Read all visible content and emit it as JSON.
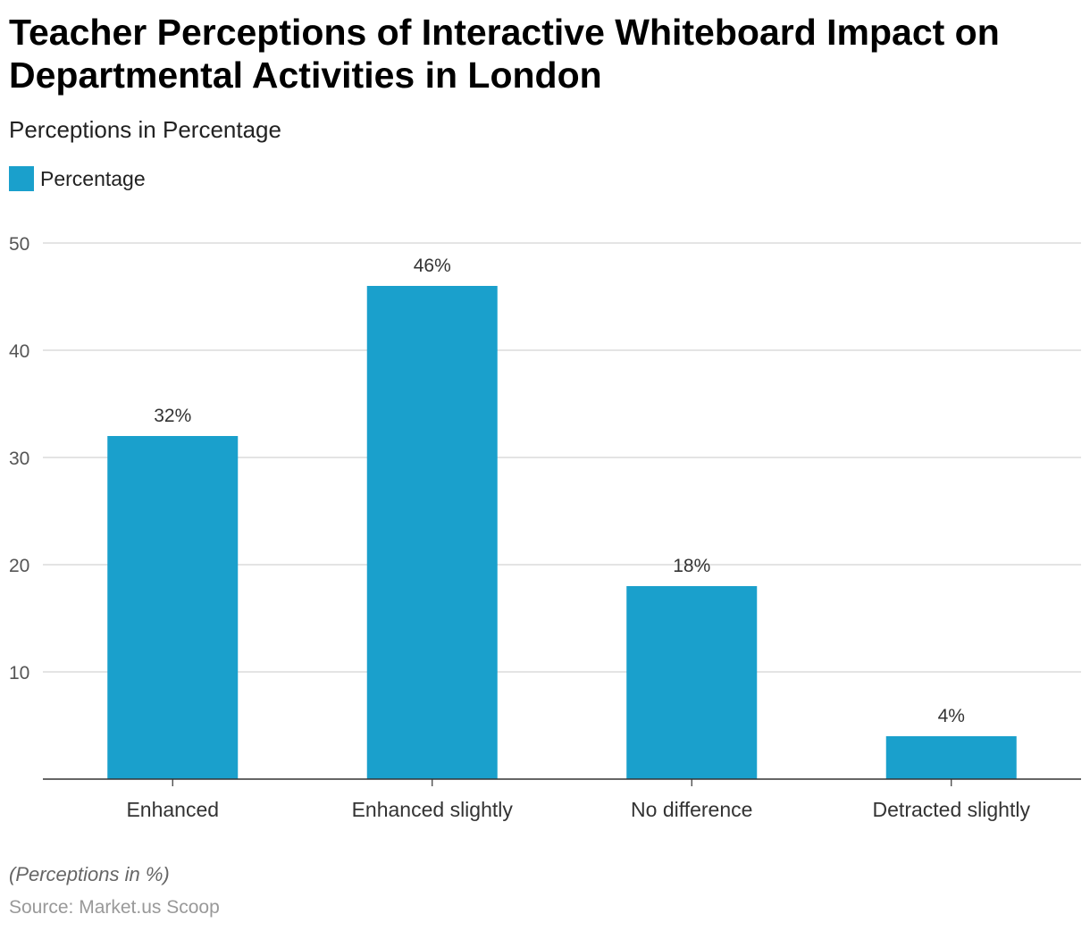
{
  "header": {
    "title": "Teacher Perceptions of Interactive Whiteboard Impact on Departmental Activities in London",
    "subtitle": "Perceptions in Percentage"
  },
  "legend": {
    "label": "Percentage",
    "color": "#1aa0cc"
  },
  "chart_data": {
    "type": "bar",
    "title": "Teacher Perceptions of Interactive Whiteboard Impact on Departmental Activities in London",
    "subtitle": "Perceptions in Percentage",
    "categories": [
      "Enhanced",
      "Enhanced slightly",
      "No difference",
      "Detracted slightly"
    ],
    "series": [
      {
        "name": "Percentage",
        "values": [
          32,
          46,
          18,
          4
        ],
        "color": "#1aa0cc"
      }
    ],
    "data_labels": [
      "32%",
      "46%",
      "18%",
      "4%"
    ],
    "yticks": [
      10,
      20,
      30,
      40,
      50
    ],
    "ylim": [
      0,
      50
    ],
    "xlabel": "",
    "ylabel": "",
    "grid": true,
    "legend_position": "top-left"
  },
  "footer": {
    "note": "(Perceptions in %)",
    "source": "Source: Market.us Scoop"
  }
}
